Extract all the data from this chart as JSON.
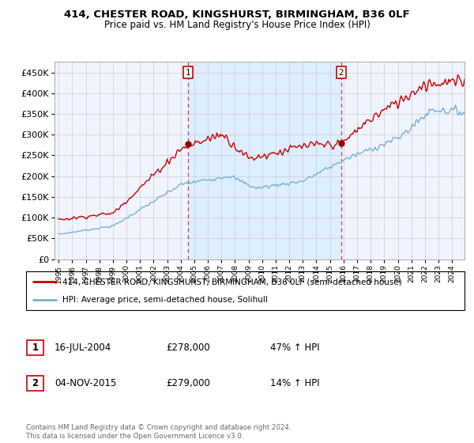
{
  "title": "414, CHESTER ROAD, KINGSHURST, BIRMINGHAM, B36 0LF",
  "subtitle": "Price paid vs. HM Land Registry's House Price Index (HPI)",
  "legend_line1": "414, CHESTER ROAD, KINGSHURST, BIRMINGHAM, B36 0LF (semi-detached house)",
  "legend_line2": "HPI: Average price, semi-detached house, Solihull",
  "annotation1_date": "16-JUL-2004",
  "annotation1_price": "£278,000",
  "annotation1_pct": "47% ↑ HPI",
  "annotation2_date": "04-NOV-2015",
  "annotation2_price": "£279,000",
  "annotation2_pct": "14% ↑ HPI",
  "footnote": "Contains HM Land Registry data © Crown copyright and database right 2024.\nThis data is licensed under the Open Government Licence v3.0.",
  "price_color": "#cc0000",
  "hpi_color": "#7ab0d4",
  "shade_color": "#ddeeff",
  "vline_color": "#cc4444",
  "ylim": [
    0,
    475000
  ],
  "yticks": [
    0,
    50000,
    100000,
    150000,
    200000,
    250000,
    300000,
    350000,
    400000,
    450000
  ],
  "ytick_labels": [
    "£0",
    "£50K",
    "£100K",
    "£150K",
    "£200K",
    "£250K",
    "£300K",
    "£350K",
    "£400K",
    "£450K"
  ],
  "grid_color": "#cccccc",
  "plot_bg": "#f0f4ff",
  "t1": 2004.54,
  "p1": 278000,
  "t2": 2015.84,
  "p2": 279000,
  "xstart": 1995.0,
  "xend": 2024.92
}
